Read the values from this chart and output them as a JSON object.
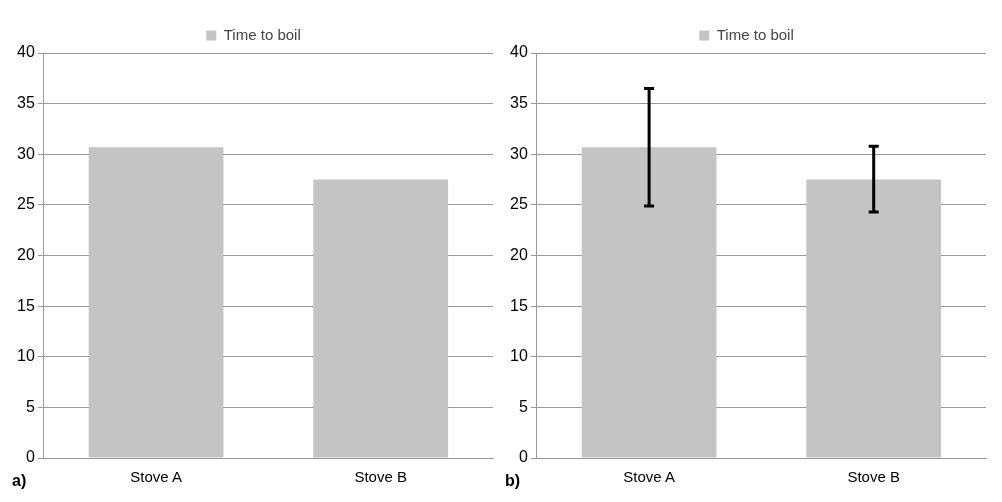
{
  "chart_data": [
    {
      "type": "bar",
      "categories": [
        "Stove A",
        "Stove B"
      ],
      "series": [
        {
          "name": "Time to boil",
          "color": "#c4c4c4",
          "values": [
            30.7,
            27.5
          ]
        }
      ],
      "ylim": [
        0,
        40
      ],
      "yticks": [
        0,
        5,
        10,
        15,
        20,
        25,
        30,
        35,
        40
      ],
      "grid": "y",
      "legend": "top",
      "annotations": [
        "a)"
      ]
    },
    {
      "type": "bar",
      "categories": [
        "Stove A",
        "Stove B"
      ],
      "series": [
        {
          "name": "Time to boil",
          "color": "#c4c4c4",
          "values": [
            30.7,
            27.5
          ],
          "errors": [
            [
              24.9,
              36.5
            ],
            [
              24.3,
              30.8
            ]
          ]
        }
      ],
      "ylim": [
        0,
        40
      ],
      "yticks": [
        0,
        5,
        10,
        15,
        20,
        25,
        30,
        35,
        40
      ],
      "grid": "y",
      "legend": "top",
      "annotations": [
        "b)"
      ]
    }
  ]
}
